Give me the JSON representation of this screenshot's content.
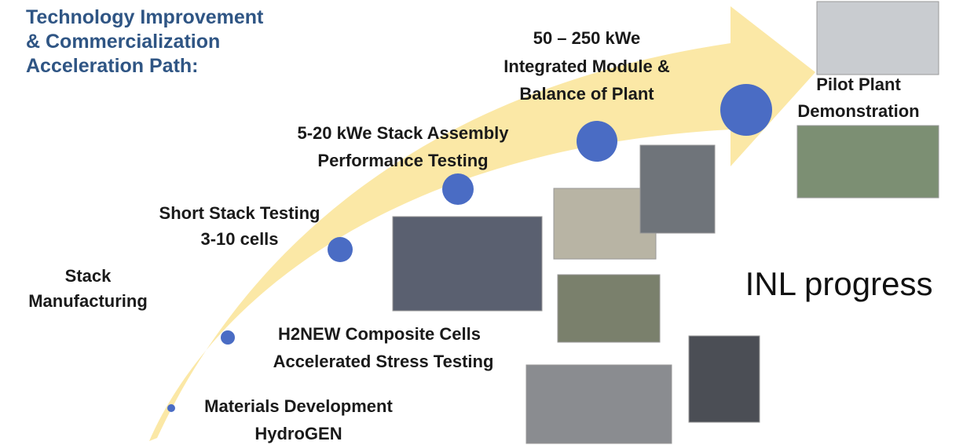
{
  "header": {
    "title": [
      "Technology Improvement",
      "& Commercialization",
      "Acceleration Path:"
    ]
  },
  "stages": [
    {
      "label": [
        "Materials Development",
        "HydroGEN"
      ]
    },
    {
      "label": [
        "H2NEW Composite Cells",
        "Accelerated Stress Testing"
      ]
    },
    {
      "label": [
        "Stack",
        "Manufacturing"
      ]
    },
    {
      "label": [
        "Short Stack Testing",
        "3-10 cells"
      ]
    },
    {
      "label": [
        "5-20 kWe Stack Assembly",
        "Performance Testing"
      ]
    },
    {
      "label": [
        "50 – 250 kWe",
        "Integrated Module &",
        "Balance of Plant"
      ]
    },
    {
      "label": [
        "Pilot Plant",
        "Demonstration"
      ]
    }
  ],
  "annotation": "INL progress"
}
